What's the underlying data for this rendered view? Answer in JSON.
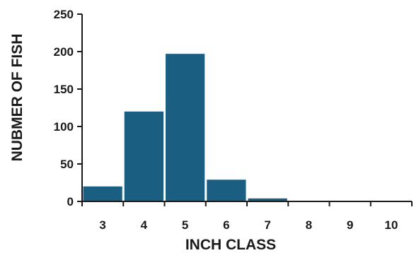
{
  "chart_data": {
    "type": "bar",
    "title": "",
    "xlabel": "INCH CLASS",
    "ylabel": "NUBMER OF FISH",
    "categories": [
      "3",
      "4",
      "5",
      "6",
      "7",
      "8",
      "9",
      "10"
    ],
    "values": [
      20,
      120,
      197,
      29,
      4,
      0,
      0,
      0
    ],
    "ylim": [
      0,
      250
    ],
    "yticks": [
      "0",
      "50",
      "100",
      "150",
      "200",
      "250"
    ],
    "grid": false,
    "legend": "none",
    "bar_color": "#1a5f82",
    "axis_color": "#1a1a1a"
  }
}
